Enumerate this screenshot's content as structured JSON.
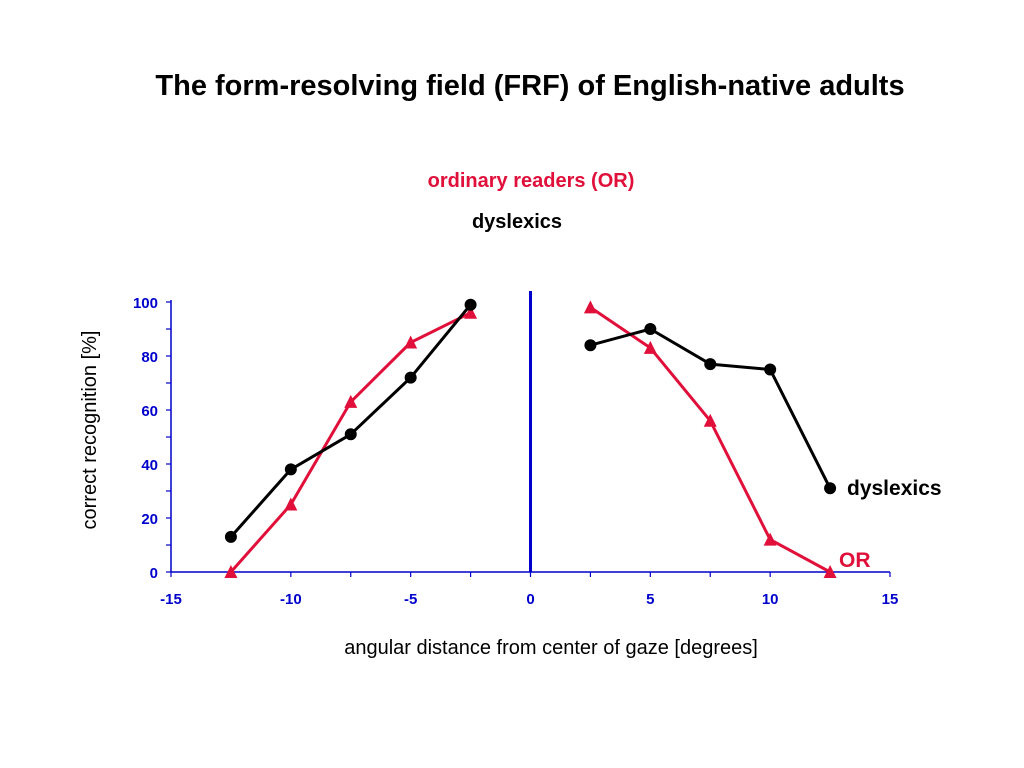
{
  "chart_data": {
    "type": "line",
    "title": "The form-resolving field (FRF) of English-native adults",
    "subtitles": [
      "ordinary readers (OR)",
      "dyslexics"
    ],
    "xlabel": "angular distance from center of gaze  [degrees]",
    "ylabel": "correct recognition  [%]",
    "xlim": [
      -15,
      15
    ],
    "ylim": [
      0,
      100
    ],
    "xticks": [
      "-15",
      "-10",
      "-5",
      "0",
      "5",
      "10",
      "15"
    ],
    "yticks": [
      "0",
      "20",
      "40",
      "60",
      "80",
      "100"
    ],
    "vertical_line_x": 0,
    "series": [
      {
        "name": "dyslexics",
        "marker": "circle",
        "color": "#000000",
        "segments": [
          [
            [
              -12.5,
              13
            ],
            [
              -10,
              38
            ],
            [
              -7.5,
              51
            ],
            [
              -5,
              72
            ],
            [
              -2.5,
              99
            ]
          ],
          [
            [
              2.5,
              84
            ],
            [
              5,
              90
            ],
            [
              7.5,
              77
            ],
            [
              10,
              75
            ],
            [
              12.5,
              31
            ]
          ]
        ]
      },
      {
        "name": "OR",
        "marker": "triangle",
        "color": "#e0103a",
        "segments": [
          [
            [
              -12.5,
              0
            ],
            [
              -10,
              25
            ],
            [
              -7.5,
              63
            ],
            [
              -5,
              85
            ],
            [
              -2.5,
              96
            ]
          ],
          [
            [
              2.5,
              98
            ],
            [
              5,
              83
            ],
            [
              7.5,
              56
            ],
            [
              10,
              12
            ],
            [
              12.5,
              0
            ]
          ]
        ]
      }
    ]
  },
  "colors": {
    "axis": "#0000cc",
    "or_red": "#e0103a",
    "dys_black": "#000000"
  }
}
